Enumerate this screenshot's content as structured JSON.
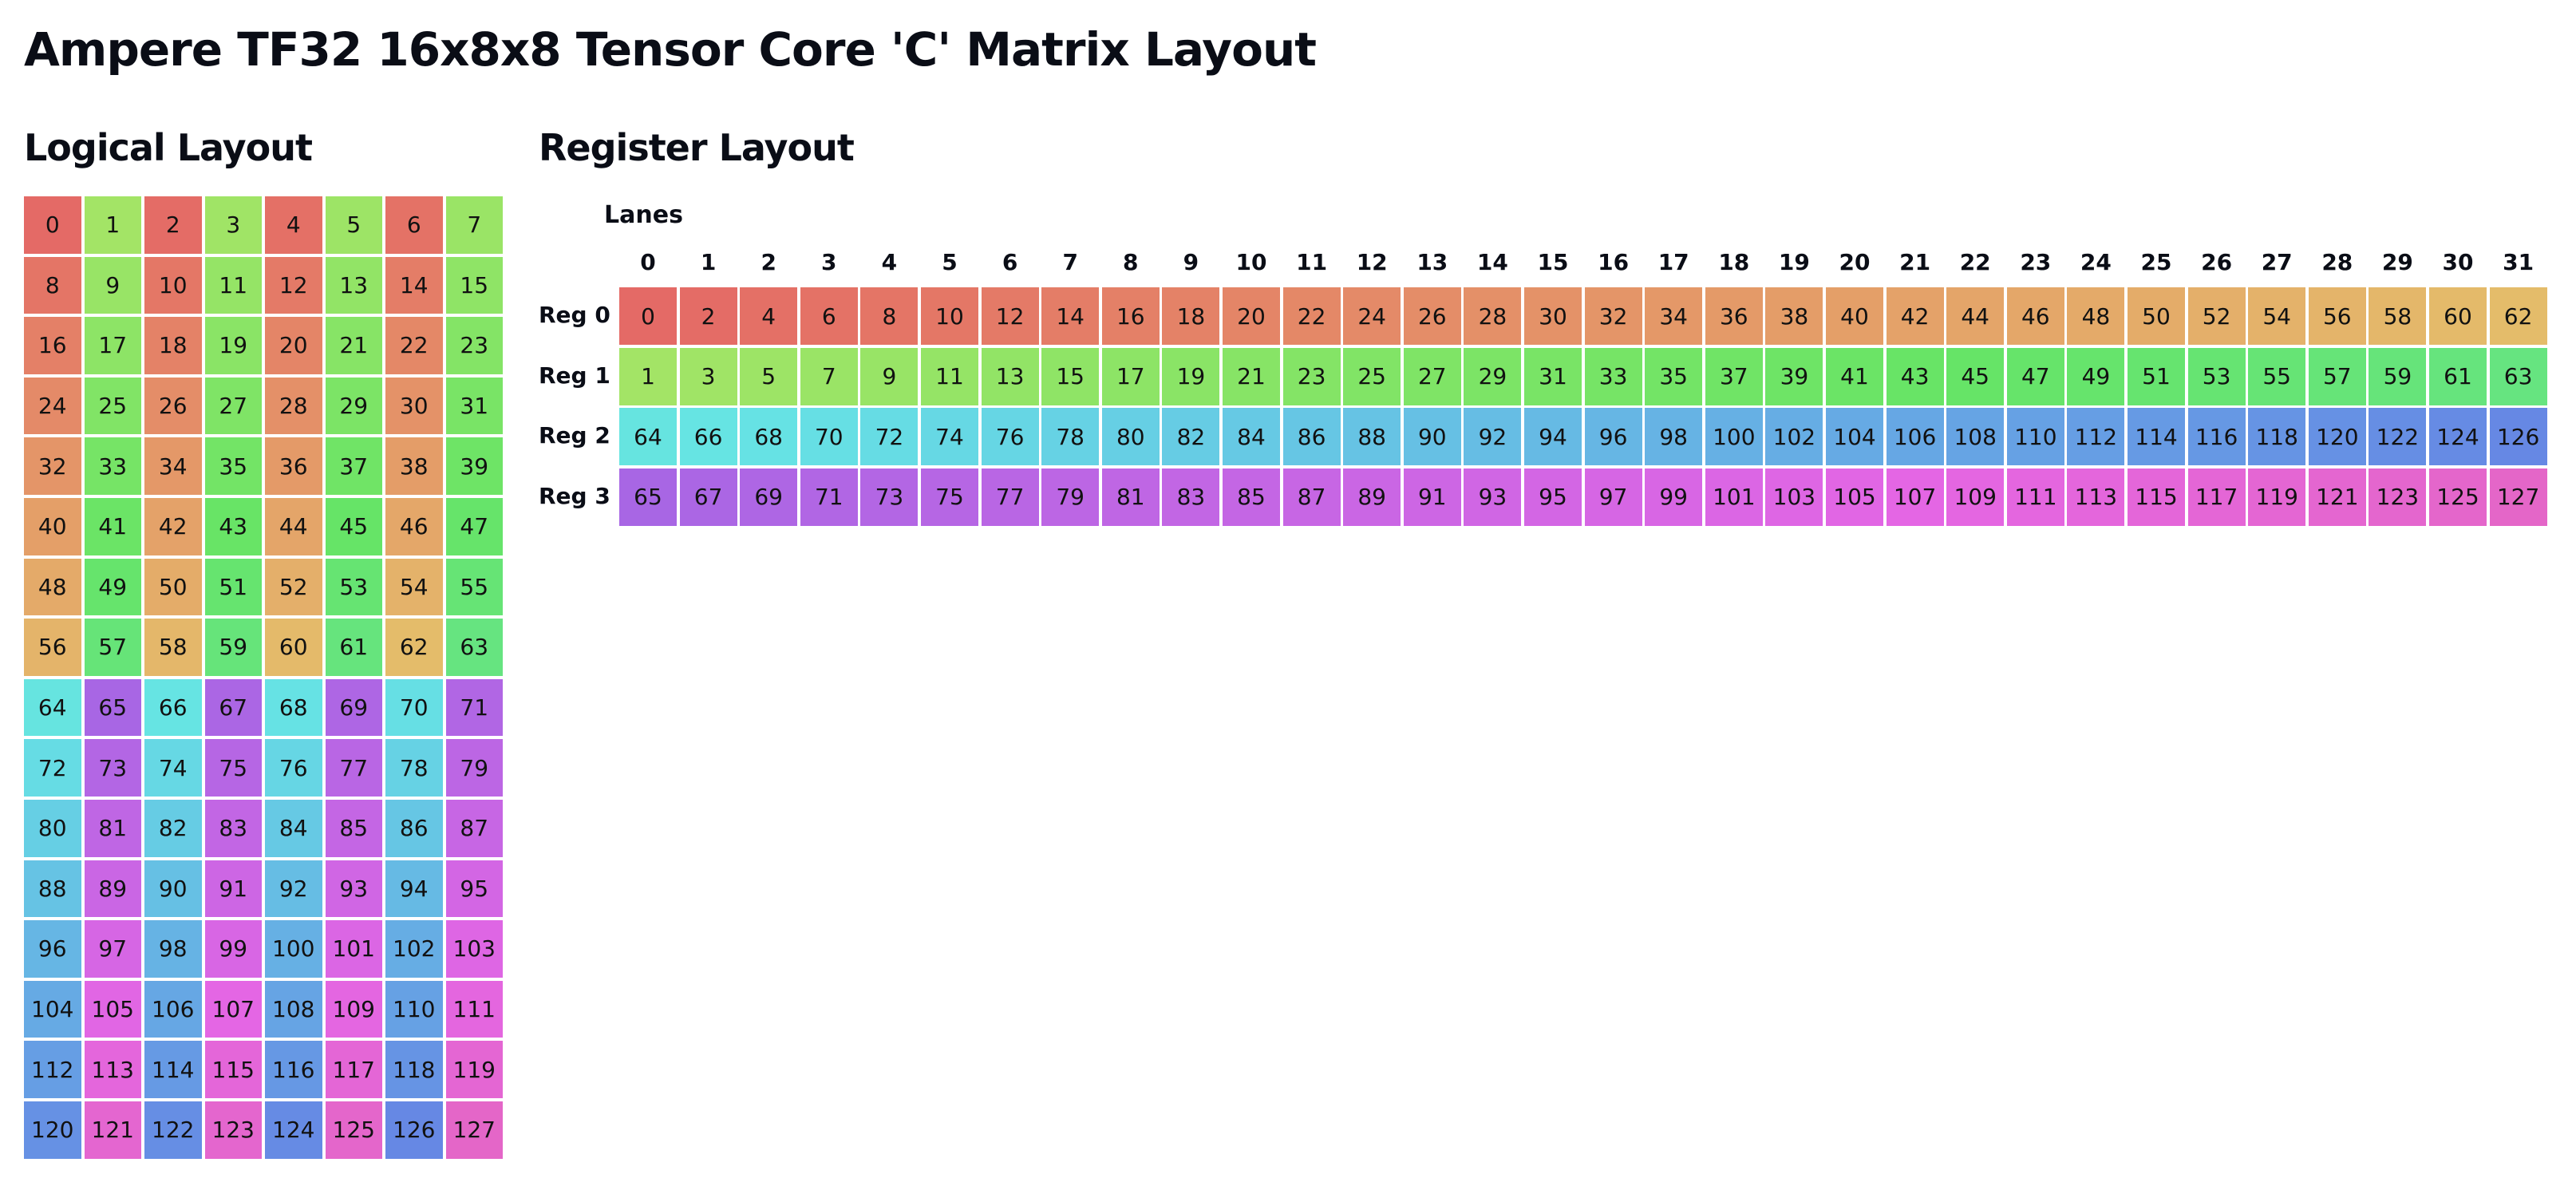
{
  "title": "Ampere TF32 16x8x8 Tensor Core 'C' Matrix Layout",
  "logical": {
    "title": "Logical Layout",
    "rows": [
      [
        0,
        1,
        2,
        3,
        4,
        5,
        6,
        7
      ],
      [
        8,
        9,
        10,
        11,
        12,
        13,
        14,
        15
      ],
      [
        16,
        17,
        18,
        19,
        20,
        21,
        22,
        23
      ],
      [
        24,
        25,
        26,
        27,
        28,
        29,
        30,
        31
      ],
      [
        32,
        33,
        34,
        35,
        36,
        37,
        38,
        39
      ],
      [
        40,
        41,
        42,
        43,
        44,
        45,
        46,
        47
      ],
      [
        48,
        49,
        50,
        51,
        52,
        53,
        54,
        55
      ],
      [
        56,
        57,
        58,
        59,
        60,
        61,
        62,
        63
      ],
      [
        64,
        65,
        66,
        67,
        68,
        69,
        70,
        71
      ],
      [
        72,
        73,
        74,
        75,
        76,
        77,
        78,
        79
      ],
      [
        80,
        81,
        82,
        83,
        84,
        85,
        86,
        87
      ],
      [
        88,
        89,
        90,
        91,
        92,
        93,
        94,
        95
      ],
      [
        96,
        97,
        98,
        99,
        100,
        101,
        102,
        103
      ],
      [
        104,
        105,
        106,
        107,
        108,
        109,
        110,
        111
      ],
      [
        112,
        113,
        114,
        115,
        116,
        117,
        118,
        119
      ],
      [
        120,
        121,
        122,
        123,
        124,
        125,
        126,
        127
      ]
    ]
  },
  "register": {
    "title": "Register Layout",
    "lanes_label": "Lanes",
    "lanes": [
      0,
      1,
      2,
      3,
      4,
      5,
      6,
      7,
      8,
      9,
      10,
      11,
      12,
      13,
      14,
      15,
      16,
      17,
      18,
      19,
      20,
      21,
      22,
      23,
      24,
      25,
      26,
      27,
      28,
      29,
      30,
      31
    ],
    "regs": [
      {
        "label": "Reg 0",
        "values": [
          0,
          2,
          4,
          6,
          8,
          10,
          12,
          14,
          16,
          18,
          20,
          22,
          24,
          26,
          28,
          30,
          32,
          34,
          36,
          38,
          40,
          42,
          44,
          46,
          48,
          50,
          52,
          54,
          56,
          58,
          60,
          62
        ]
      },
      {
        "label": "Reg 1",
        "values": [
          1,
          3,
          5,
          7,
          9,
          11,
          13,
          15,
          17,
          19,
          21,
          23,
          25,
          27,
          29,
          31,
          33,
          35,
          37,
          39,
          41,
          43,
          45,
          47,
          49,
          51,
          53,
          55,
          57,
          59,
          61,
          63
        ]
      },
      {
        "label": "Reg 2",
        "values": [
          64,
          66,
          68,
          70,
          72,
          74,
          76,
          78,
          80,
          82,
          84,
          86,
          88,
          90,
          92,
          94,
          96,
          98,
          100,
          102,
          104,
          106,
          108,
          110,
          112,
          114,
          116,
          118,
          120,
          122,
          124,
          126
        ]
      },
      {
        "label": "Reg 3",
        "values": [
          65,
          67,
          69,
          71,
          73,
          75,
          77,
          79,
          81,
          83,
          85,
          87,
          89,
          91,
          93,
          95,
          97,
          99,
          101,
          103,
          105,
          107,
          109,
          111,
          113,
          115,
          117,
          119,
          121,
          123,
          125,
          127
        ]
      }
    ]
  },
  "colors": {
    "reg0": {
      "lane0": "#e46a66",
      "lane31": "#e4bc6a"
    },
    "reg1": {
      "lane0": "#a3e466",
      "lane31": "#66e480"
    },
    "reg2": {
      "lane0": "#66e4e0",
      "lane31": "#6688e4"
    },
    "reg3": {
      "lane0": "#a866e4",
      "lane31": "#e466c8"
    }
  }
}
